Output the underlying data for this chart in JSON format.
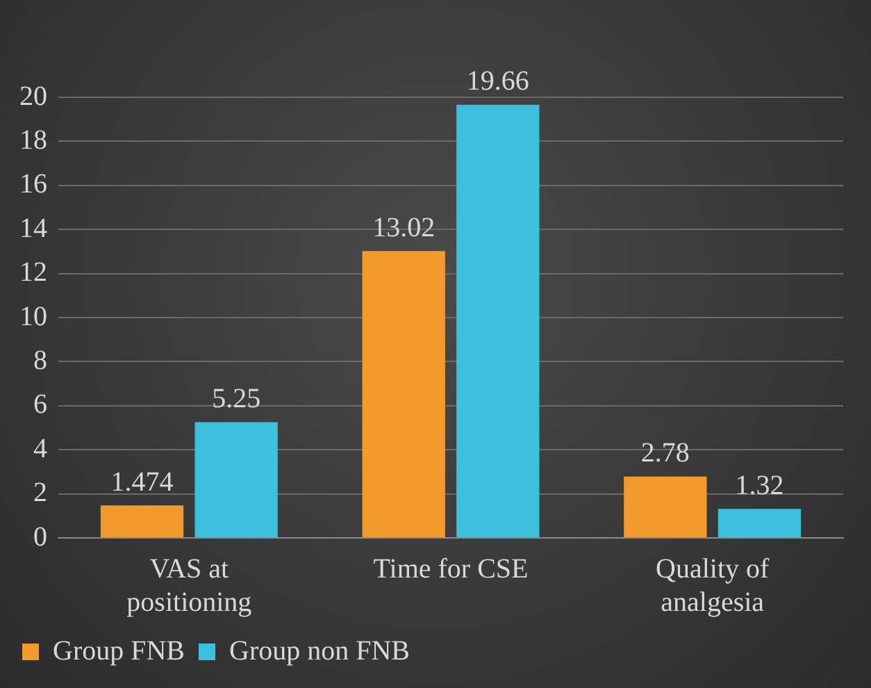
{
  "chart_data": {
    "type": "bar",
    "categories": [
      "VAS at positioning",
      "Time for CSE",
      "Quality of analgesia"
    ],
    "series": [
      {
        "name": "Group FNB",
        "color": "#f39a2c",
        "values": [
          1.474,
          13.02,
          2.78
        ]
      },
      {
        "name": "Group non FNB",
        "color": "#3cc0de",
        "values": [
          5.25,
          19.66,
          1.32
        ]
      }
    ],
    "ylim": [
      0,
      20
    ],
    "yticks": [
      0,
      2,
      4,
      6,
      8,
      10,
      12,
      14,
      16,
      18,
      20
    ],
    "grid": "y",
    "legend": "bottom left",
    "data_labels": true
  }
}
